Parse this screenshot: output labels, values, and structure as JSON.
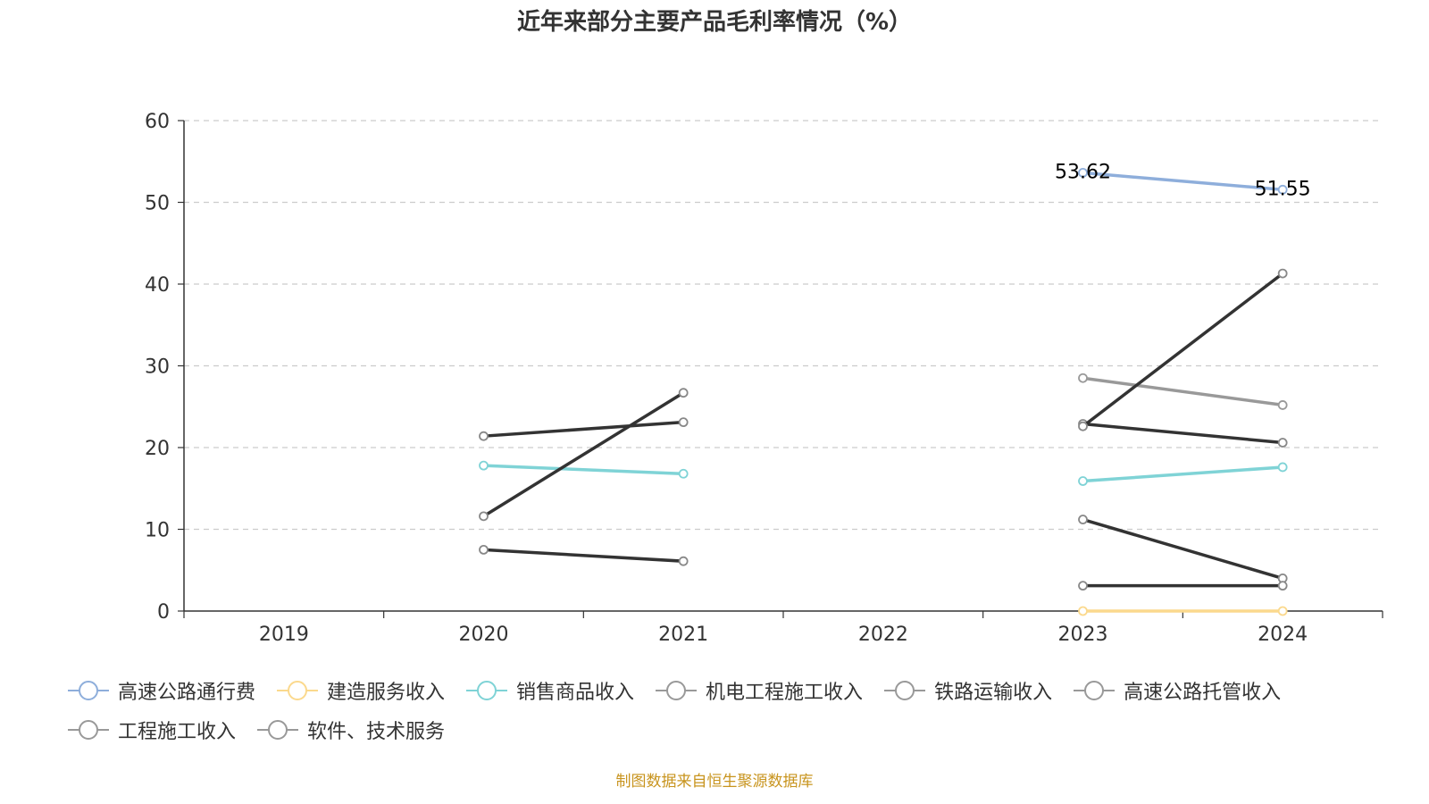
{
  "page": {
    "title": "近年来部分主要产品毛利率情况（%）",
    "source_note": "制图数据来自恒生聚源数据库"
  },
  "chart_data": {
    "type": "line",
    "title": "近年来部分主要产品毛利率情况（%）",
    "categories": [
      "2019",
      "2020",
      "2021",
      "2022",
      "2023",
      "2024"
    ],
    "ylim": [
      0,
      60
    ],
    "yticks": [
      0,
      10,
      20,
      30,
      40,
      50,
      60
    ],
    "grid": true,
    "legend_position": "bottom",
    "series": [
      {
        "name": "高速公路通行费",
        "color": "#8eaedb",
        "values": [
          null,
          null,
          null,
          null,
          53.62,
          51.55
        ],
        "show_labels": true
      },
      {
        "name": "建造服务收入",
        "color": "#fbd98d",
        "values": [
          null,
          null,
          null,
          null,
          0,
          0
        ],
        "show_labels": false
      },
      {
        "name": "销售商品收入",
        "color": "#7fd3d6",
        "values": [
          null,
          17.8,
          16.8,
          null,
          15.9,
          17.6
        ],
        "show_labels": false
      },
      {
        "name": "机电工程施工收入",
        "color": "#333333",
        "values": [
          null,
          21.4,
          23.1,
          null,
          22.9,
          20.6
        ],
        "show_labels": false
      },
      {
        "name": "铁路运输收入",
        "color": "#999999",
        "values": [
          null,
          null,
          null,
          null,
          28.5,
          25.2
        ],
        "show_labels": false
      },
      {
        "name": "高速公路托管收入",
        "color": "#333333",
        "values": [
          null,
          11.6,
          26.7,
          null,
          22.6,
          41.3
        ],
        "show_labels": false
      },
      {
        "name": "工程施工收入",
        "color": "#333333",
        "values": [
          null,
          7.5,
          6.1,
          null,
          11.2,
          4.0
        ],
        "show_labels": false
      },
      {
        "name": "软件、技术服务",
        "color": "#333333",
        "values": [
          null,
          null,
          null,
          null,
          3.1,
          3.1
        ],
        "show_labels": false
      }
    ]
  }
}
